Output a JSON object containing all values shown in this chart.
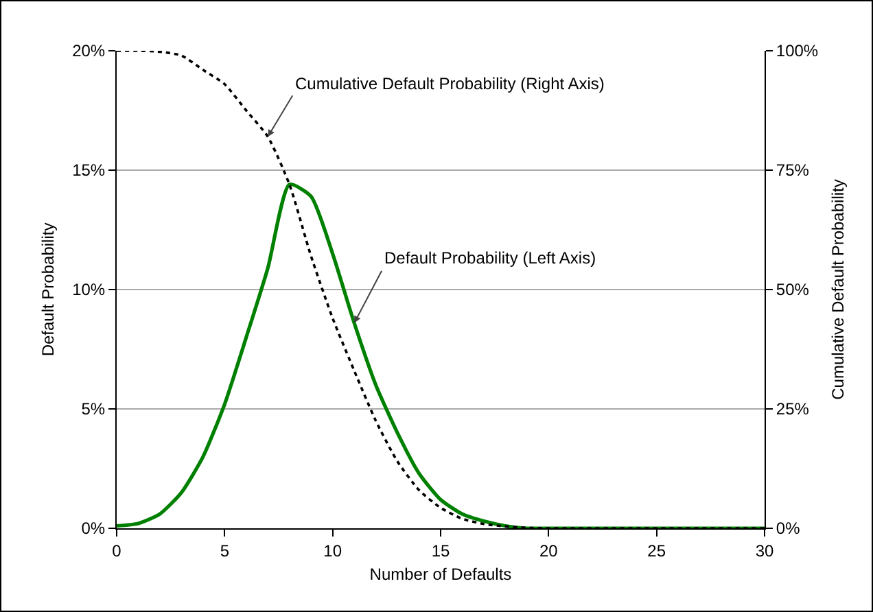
{
  "chart_data": {
    "type": "line",
    "xlabel": "Number of Defaults",
    "ylabel": "Default Probability",
    "y2label": "Cumulative Default Probability",
    "x": [
      0,
      1,
      2,
      3,
      4,
      5,
      6,
      7,
      8,
      9,
      10,
      11,
      12,
      13,
      14,
      15,
      16,
      17,
      18,
      19,
      20,
      21,
      22,
      23,
      24,
      25,
      26,
      27,
      28,
      29,
      30
    ],
    "series": [
      {
        "name": "Default Probability (Left Axis)",
        "color": "#008000",
        "line_style": "solid",
        "values": [
          0.1,
          0.2,
          0.6,
          1.5,
          3,
          5.2,
          8,
          10.9,
          14.4,
          13.9,
          11.5,
          8.6,
          6,
          4,
          2.3,
          1.2,
          0.6,
          0.3,
          0.1,
          0,
          0,
          0,
          0,
          0,
          0,
          0,
          0,
          0,
          0,
          0,
          0
        ]
      },
      {
        "name": "Cumulative Default Probability (Right Axis)",
        "axis": "y2",
        "color": "#000000",
        "line_style": "dotted",
        "values": [
          100,
          100,
          99.8,
          99,
          96,
          93,
          87.5,
          82,
          72,
          57,
          44,
          33,
          22.5,
          14,
          8,
          4.3,
          2,
          0.9,
          0.4,
          0.1,
          0,
          0,
          0,
          0,
          0,
          0,
          0,
          0,
          0,
          0,
          0
        ]
      }
    ],
    "xlim": [
      0,
      30
    ],
    "xticks": [
      0,
      5,
      10,
      15,
      20,
      25,
      30
    ],
    "ylim": [
      0,
      20
    ],
    "yticks": [
      {
        "value": 0,
        "label": "0%"
      },
      {
        "value": 5,
        "label": "5%"
      },
      {
        "value": 10,
        "label": "10%"
      },
      {
        "value": 15,
        "label": "15%"
      },
      {
        "value": 20,
        "label": "20%"
      }
    ],
    "y2lim": [
      0,
      100
    ],
    "y2ticks": [
      {
        "value": 0,
        "label": "0%"
      },
      {
        "value": 25,
        "label": "25%"
      },
      {
        "value": 50,
        "label": "50%"
      },
      {
        "value": 75,
        "label": "75%"
      },
      {
        "value": 100,
        "label": "100%"
      }
    ],
    "grid": "y",
    "legend": false,
    "marker": "none"
  }
}
